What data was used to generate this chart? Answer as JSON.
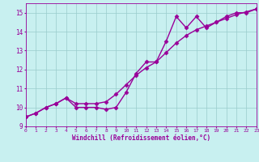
{
  "xlabel": "Windchill (Refroidissement éolien,°C)",
  "ylabel": "",
  "bg_color": "#c8f0f0",
  "line_color": "#990099",
  "marker": "D",
  "x_data": [
    0,
    1,
    2,
    3,
    4,
    5,
    6,
    7,
    8,
    9,
    10,
    11,
    12,
    13,
    14,
    15,
    16,
    17,
    18,
    19,
    20,
    21,
    22,
    23
  ],
  "y_data1": [
    9.5,
    9.7,
    10.0,
    10.2,
    10.5,
    10.0,
    10.0,
    10.0,
    9.9,
    10.0,
    10.8,
    11.8,
    12.4,
    12.4,
    13.5,
    14.8,
    14.2,
    14.8,
    14.2,
    14.5,
    14.8,
    15.0,
    15.0,
    15.2
  ],
  "y_data2": [
    9.5,
    9.7,
    10.0,
    10.2,
    10.5,
    10.2,
    10.2,
    10.2,
    10.3,
    10.7,
    11.2,
    11.7,
    12.1,
    12.4,
    12.9,
    13.4,
    13.8,
    14.1,
    14.3,
    14.5,
    14.7,
    14.9,
    15.05,
    15.2
  ],
  "xlim": [
    0,
    23
  ],
  "ylim": [
    9.0,
    15.5
  ],
  "yticks": [
    9,
    10,
    11,
    12,
    13,
    14,
    15
  ],
  "xticks": [
    0,
    1,
    2,
    3,
    4,
    5,
    6,
    7,
    8,
    9,
    10,
    11,
    12,
    13,
    14,
    15,
    16,
    17,
    18,
    19,
    20,
    21,
    22,
    23
  ],
  "grid_color": "#99cccc",
  "tick_color": "#990099",
  "label_color": "#990099",
  "markersize": 2.5,
  "linewidth": 1.0
}
